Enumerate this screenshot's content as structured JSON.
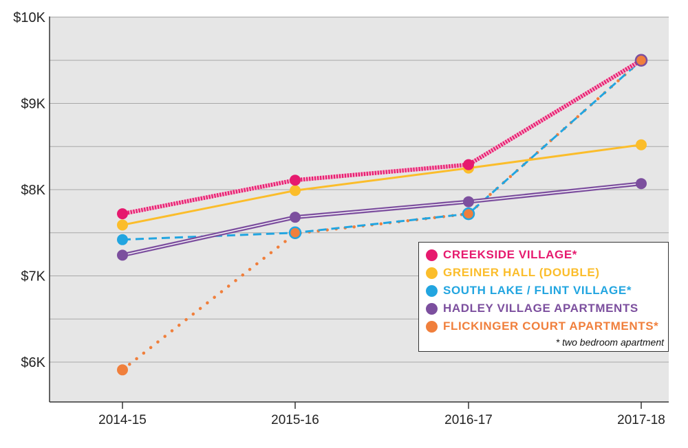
{
  "chart_data": {
    "type": "line",
    "title": "",
    "xlabel": "",
    "ylabel": "",
    "categories": [
      "2014-15",
      "2015-16",
      "2016-17",
      "2017-18"
    ],
    "ylim": [
      5500,
      10000
    ],
    "yticks": [
      {
        "value": 6000,
        "label": "$6K"
      },
      {
        "value": 7000,
        "label": "$7K"
      },
      {
        "value": 8000,
        "label": "$8K"
      },
      {
        "value": 9000,
        "label": "$9K"
      },
      {
        "value": 10000,
        "label": "$10K"
      }
    ],
    "grid": true,
    "legend_position": "bottom-right",
    "series": [
      {
        "name": "CREEKSIDE VILLAGE*",
        "color": "#e6196e",
        "style": "dotted-band",
        "values": [
          7720,
          8110,
          8290,
          9500
        ]
      },
      {
        "name": "GREINER HALL (DOUBLE)",
        "color": "#fbbd2b",
        "style": "solid",
        "values": [
          7590,
          7990,
          8250,
          8520
        ]
      },
      {
        "name": "SOUTH LAKE / FLINT VILLAGE*",
        "color": "#22a5e0",
        "style": "dashed",
        "values": [
          7420,
          7500,
          7720,
          9500
        ]
      },
      {
        "name": "HADLEY VILLAGE APARTMENTS",
        "color": "#7c4f9e",
        "style": "double",
        "values": [
          7240,
          7680,
          7860,
          8070
        ]
      },
      {
        "name": "FLICKINGER COURT APARTMENTS*",
        "color": "#f07f3c",
        "style": "dotted",
        "values": [
          5910,
          7490,
          7720,
          9500
        ]
      }
    ],
    "note": "* two bedroom apartment"
  }
}
